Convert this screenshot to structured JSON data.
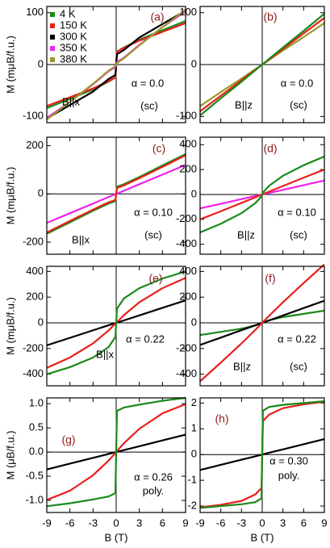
{
  "chart_data": [
    {
      "type": "line",
      "panel_label": "(a)",
      "annotations": [
        "α = 0.0",
        "(sc)",
        "B||x"
      ],
      "ylabel": "M (mμB/f.u.)",
      "legend": "upper left",
      "x": [
        -9,
        -6,
        -3,
        -1,
        -0.1,
        0,
        0.1,
        1,
        3,
        6,
        9
      ],
      "xlim": [
        -9,
        9
      ],
      "xticks": [
        -9,
        -6,
        -3,
        0,
        3,
        6,
        9
      ],
      "ylim": [
        -112,
        112
      ],
      "yticks": [
        100,
        0,
        -100
      ],
      "series": [
        {
          "name": "4 K",
          "color": "#1a8a1a",
          "values": [
            -84,
            -66,
            -48,
            -33,
            -25,
            0,
            25,
            33,
            48,
            66,
            84
          ]
        },
        {
          "name": "150 K",
          "color": "#e8201a",
          "values": [
            -80,
            -63,
            -46,
            -32,
            -25,
            0,
            25,
            32,
            46,
            63,
            80
          ]
        },
        {
          "name": "300 K",
          "color": "#000000",
          "values": [
            -104,
            -78,
            -52,
            -28,
            -20,
            0,
            20,
            28,
            52,
            78,
            104
          ]
        },
        {
          "name": "350 K",
          "color": "#ee22ee",
          "values": [
            -103,
            -72,
            -38,
            -13,
            -5,
            0,
            5,
            13,
            38,
            72,
            103
          ]
        },
        {
          "name": "380 K",
          "color": "#9a9a2a",
          "values": [
            -106,
            -72,
            -37,
            -12,
            -3,
            0,
            3,
            12,
            37,
            72,
            106
          ]
        }
      ]
    },
    {
      "type": "line",
      "panel_label": "(b)",
      "annotations": [
        "α = 0.0",
        "(sc)",
        "B||z"
      ],
      "x": [
        -9,
        -6,
        -3,
        -1,
        -0.1,
        0,
        0.1,
        1,
        3,
        6,
        9
      ],
      "xlim": [
        -9,
        9
      ],
      "xticks": [
        -9,
        -6,
        -3,
        0,
        3,
        6,
        9
      ],
      "ylim": [
        -112,
        112
      ],
      "yticks": [
        100,
        0,
        -100
      ],
      "series": [
        {
          "color": "#9a9a2a",
          "values": [
            -80,
            -53,
            -27,
            -9,
            -1,
            0,
            1,
            9,
            27,
            53,
            80
          ]
        },
        {
          "color": "#e8201a",
          "values": [
            -90,
            -60,
            -30,
            -10,
            -1,
            0,
            1,
            10,
            30,
            60,
            90
          ]
        },
        {
          "color": "#1a8a1a",
          "values": [
            -98,
            -65,
            -33,
            -11,
            -1,
            0,
            1,
            11,
            33,
            65,
            98
          ]
        }
      ]
    },
    {
      "type": "line",
      "panel_label": "(c)",
      "annotations": [
        "α = 0.10",
        "(sc)",
        "B||x"
      ],
      "ylabel": "M (mμB/f.u.)",
      "x": [
        -9,
        -6,
        -3,
        -1,
        -0.1,
        0,
        0.1,
        1,
        3,
        6,
        9
      ],
      "xlim": [
        -9,
        9
      ],
      "xticks": [
        -9,
        -6,
        -3,
        0,
        3,
        6,
        9
      ],
      "ylim": [
        -250,
        235
      ],
      "yticks": [
        200,
        0,
        -200
      ],
      "series": [
        {
          "color": "#ee22ee",
          "values": [
            -120,
            -80,
            -40,
            -13,
            -1,
            0,
            1,
            13,
            40,
            80,
            120
          ]
        },
        {
          "color": "#1a8a1a",
          "values": [
            -165,
            -118,
            -70,
            -40,
            -30,
            0,
            30,
            40,
            70,
            118,
            165
          ]
        },
        {
          "color": "#e8201a",
          "values": [
            -160,
            -112,
            -65,
            -35,
            -25,
            0,
            25,
            35,
            65,
            112,
            160
          ]
        }
      ]
    },
    {
      "type": "line",
      "panel_label": "(d)",
      "annotations": [
        "α = 0.10",
        "(sc)",
        "B||z"
      ],
      "x": [
        -9,
        -6,
        -3,
        -1,
        -0.1,
        0,
        0.1,
        1,
        3,
        6,
        9
      ],
      "xlim": [
        -9,
        9
      ],
      "xticks": [
        -9,
        -6,
        -3,
        0,
        3,
        6,
        9
      ],
      "ylim": [
        -480,
        460
      ],
      "yticks": [
        400,
        200,
        0,
        -200,
        -400
      ],
      "series": [
        {
          "color": "#ee22ee",
          "values": [
            -112,
            -75,
            -37,
            -12,
            -1,
            0,
            1,
            12,
            37,
            75,
            112
          ]
        },
        {
          "color": "#e8201a",
          "values": [
            -200,
            -135,
            -68,
            -23,
            -2,
            0,
            2,
            23,
            68,
            135,
            200
          ]
        },
        {
          "color": "#1a8a1a",
          "values": [
            -305,
            -235,
            -150,
            -70,
            -15,
            0,
            15,
            70,
            150,
            235,
            305
          ]
        }
      ]
    },
    {
      "type": "line",
      "panel_label": "(e)",
      "annotations": [
        "α = 0.22",
        "B||x"
      ],
      "ylabel": "M (mμB/f.u.)",
      "x": [
        -9,
        -6,
        -3,
        -1,
        -0.1,
        0,
        0.1,
        1,
        3,
        6,
        9
      ],
      "xlim": [
        -9,
        9
      ],
      "xticks": [
        -9,
        -6,
        -3,
        0,
        3,
        6,
        9
      ],
      "ylim": [
        -490,
        440
      ],
      "yticks": [
        400,
        200,
        0,
        -200,
        -400
      ],
      "series": [
        {
          "color": "#000000",
          "values": [
            -175,
            -117,
            -58,
            -19,
            -2,
            0,
            2,
            19,
            58,
            117,
            175
          ]
        },
        {
          "color": "#e8201a",
          "values": [
            -350,
            -270,
            -160,
            -60,
            -5,
            0,
            5,
            60,
            160,
            270,
            350
          ]
        },
        {
          "color": "#1a8a1a",
          "values": [
            -400,
            -345,
            -270,
            -190,
            -110,
            0,
            110,
            190,
            270,
            345,
            400
          ]
        }
      ]
    },
    {
      "type": "line",
      "panel_label": "(f)",
      "annotations": [
        "α = 0.22",
        "(sc)",
        "B||z"
      ],
      "x": [
        -9,
        -6,
        -3,
        -1,
        -0.1,
        0,
        0.1,
        1,
        3,
        6,
        9
      ],
      "xlim": [
        -9,
        9
      ],
      "xticks": [
        -9,
        -6,
        -3,
        0,
        3,
        6,
        9
      ],
      "ylim": [
        -490,
        440
      ],
      "yticks": [
        400,
        200,
        0,
        -200,
        -400
      ],
      "series": [
        {
          "color": "#1a8a1a",
          "values": [
            -95,
            -70,
            -45,
            -20,
            -2,
            0,
            2,
            20,
            45,
            70,
            95
          ]
        },
        {
          "color": "#000000",
          "values": [
            -172,
            -115,
            -57,
            -19,
            -2,
            0,
            2,
            19,
            57,
            115,
            172
          ]
        },
        {
          "color": "#e8201a",
          "values": [
            -455,
            -310,
            -160,
            -55,
            -5,
            0,
            5,
            55,
            160,
            310,
            455
          ]
        }
      ]
    },
    {
      "type": "line",
      "panel_label": "(g)",
      "annotations": [
        "α = 0.26",
        "poly."
      ],
      "ylabel": "M (μB/f.u.)",
      "xlabel": "B (T)",
      "x": [
        -9,
        -6,
        -3,
        -1,
        -0.1,
        0,
        0.1,
        1,
        3,
        6,
        9
      ],
      "xlim": [
        -9,
        9
      ],
      "xticks": [
        -9,
        -6,
        -3,
        0,
        3,
        6,
        9
      ],
      "ylim": [
        -1.25,
        1.12
      ],
      "yticks": [
        {
          "value": 1,
          "label": "1.0"
        },
        0.5,
        {
          "value": 0,
          "label": "0.0"
        },
        -0.5,
        {
          "value": -1,
          "label": "-1.0"
        }
      ],
      "series": [
        {
          "color": "#000000",
          "values": [
            -0.36,
            -0.24,
            -0.12,
            -0.04,
            -0.004,
            0,
            0.004,
            0.04,
            0.12,
            0.24,
            0.36
          ]
        },
        {
          "color": "#e8201a",
          "values": [
            -0.99,
            -0.8,
            -0.48,
            -0.18,
            -0.02,
            0,
            0.02,
            0.18,
            0.48,
            0.8,
            0.99
          ]
        },
        {
          "color": "#1a8a1a",
          "values": [
            -1.12,
            -1.06,
            -0.98,
            -0.92,
            -0.85,
            0,
            0.85,
            0.92,
            0.98,
            1.06,
            1.12
          ]
        }
      ]
    },
    {
      "type": "line",
      "panel_label": "(h)",
      "annotations": [
        "α = 0.30",
        "poly."
      ],
      "xlabel": "B (T)",
      "x": [
        -9,
        -6,
        -3,
        -1,
        -0.1,
        0,
        0.1,
        1,
        3,
        6,
        9
      ],
      "xlim": [
        -9,
        9
      ],
      "xticks": [
        -9,
        -6,
        -3,
        0,
        3,
        6,
        9
      ],
      "ylim": [
        -2.25,
        2.2
      ],
      "yticks": [
        2,
        1,
        0,
        -1,
        -2
      ],
      "series": [
        {
          "color": "#000000",
          "values": [
            -0.6,
            -0.4,
            -0.2,
            -0.07,
            -0.007,
            0,
            0.007,
            0.07,
            0.2,
            0.4,
            0.6
          ]
        },
        {
          "color": "#e8201a",
          "values": [
            -2.05,
            -1.95,
            -1.8,
            -1.55,
            -1.3,
            0,
            1.3,
            1.55,
            1.8,
            1.95,
            2.05
          ]
        },
        {
          "color": "#1a8a1a",
          "values": [
            -2.07,
            -2.0,
            -1.93,
            -1.85,
            -1.7,
            0,
            1.7,
            1.85,
            1.93,
            2.0,
            2.07
          ]
        }
      ]
    }
  ]
}
